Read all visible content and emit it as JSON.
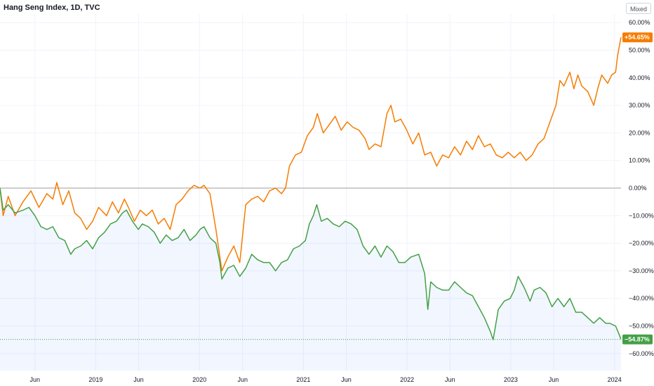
{
  "header": {
    "title": "Hang Seng Index, 1D, TVC",
    "mode_label": "Mixed"
  },
  "colors": {
    "comparison": "#f57c00",
    "main": "#43a047",
    "zero_line": "#9e9e9e",
    "grid": "#f0f3fa",
    "area": "#2962ff"
  },
  "chart_data": {
    "type": "line",
    "title": "Hang Seng Index, 1D, TVC",
    "xlabel": "",
    "ylabel": "",
    "ylim": [
      -62,
      62
    ],
    "y_ticks": [
      60,
      50,
      40,
      30,
      20,
      10,
      0,
      -10,
      -20,
      -30,
      -40,
      -50,
      -60
    ],
    "y_tick_labels": [
      "60.00%",
      "50.00%",
      "40.00%",
      "30.00%",
      "20.00%",
      "10.00%",
      "0.00%",
      "−10.00%",
      "−20.00%",
      "−30.00%",
      "−40.00%",
      "−50.00%",
      "−60.00%"
    ],
    "x_ticks": [
      "2018-06-01",
      "2019-01-01",
      "2019-06-01",
      "2020-01-01",
      "2020-06-01",
      "2021-01-01",
      "2021-06-01",
      "2022-01-01",
      "2022-06-01",
      "2023-01-01",
      "2023-06-01",
      "2024-01-01"
    ],
    "x_tick_labels": [
      "Jun",
      "2019",
      "Jun",
      "2020",
      "Jun",
      "2021",
      "Jun",
      "2022",
      "Jun",
      "2023",
      "Jun",
      "2024"
    ],
    "x_range": [
      "2018-01-29",
      "2024-01-24"
    ],
    "grid": true,
    "legend": "none",
    "series": [
      {
        "key": "comparison",
        "badge": "+54.65%",
        "points": [
          [
            "2018-01-29",
            0
          ],
          [
            "2018-02-09",
            -10
          ],
          [
            "2018-02-27",
            -3
          ],
          [
            "2018-03-23",
            -10
          ],
          [
            "2018-04-20",
            -5
          ],
          [
            "2018-05-18",
            -1
          ],
          [
            "2018-06-15",
            -7
          ],
          [
            "2018-07-13",
            -2
          ],
          [
            "2018-08-03",
            -4
          ],
          [
            "2018-08-17",
            2
          ],
          [
            "2018-09-07",
            -6
          ],
          [
            "2018-09-28",
            -1
          ],
          [
            "2018-10-19",
            -9
          ],
          [
            "2018-11-09",
            -11
          ],
          [
            "2018-11-30",
            -15
          ],
          [
            "2018-12-21",
            -12
          ],
          [
            "2019-01-11",
            -7
          ],
          [
            "2019-02-08",
            -10
          ],
          [
            "2019-03-01",
            -5
          ],
          [
            "2019-03-22",
            -9
          ],
          [
            "2019-04-12",
            -4
          ],
          [
            "2019-04-26",
            -7
          ],
          [
            "2019-05-17",
            -12
          ],
          [
            "2019-06-07",
            -8
          ],
          [
            "2019-06-28",
            -10
          ],
          [
            "2019-07-19",
            -8
          ],
          [
            "2019-08-09",
            -13
          ],
          [
            "2019-08-30",
            -11
          ],
          [
            "2019-09-20",
            -15
          ],
          [
            "2019-10-11",
            -6
          ],
          [
            "2019-11-01",
            -4
          ],
          [
            "2019-11-22",
            -1
          ],
          [
            "2019-12-13",
            1
          ],
          [
            "2020-01-03",
            0
          ],
          [
            "2020-01-17",
            1
          ],
          [
            "2020-02-07",
            -2
          ],
          [
            "2020-02-28",
            -15
          ],
          [
            "2020-03-13",
            -25
          ],
          [
            "2020-03-20",
            -30
          ],
          [
            "2020-04-10",
            -25
          ],
          [
            "2020-05-01",
            -21
          ],
          [
            "2020-05-22",
            -27
          ],
          [
            "2020-06-12",
            -6
          ],
          [
            "2020-07-03",
            -4
          ],
          [
            "2020-07-24",
            -3
          ],
          [
            "2020-08-14",
            -5
          ],
          [
            "2020-09-04",
            -1
          ],
          [
            "2020-09-25",
            0
          ],
          [
            "2020-10-16",
            -2
          ],
          [
            "2020-10-30",
            0
          ],
          [
            "2020-11-13",
            8
          ],
          [
            "2020-12-04",
            12
          ],
          [
            "2020-12-25",
            13
          ],
          [
            "2021-01-15",
            19
          ],
          [
            "2021-02-05",
            22
          ],
          [
            "2021-02-19",
            27
          ],
          [
            "2021-03-12",
            20
          ],
          [
            "2021-04-02",
            23
          ],
          [
            "2021-04-23",
            26
          ],
          [
            "2021-05-14",
            21
          ],
          [
            "2021-06-04",
            24
          ],
          [
            "2021-06-25",
            22
          ],
          [
            "2021-07-16",
            21
          ],
          [
            "2021-08-06",
            18
          ],
          [
            "2021-08-20",
            14
          ],
          [
            "2021-09-10",
            16
          ],
          [
            "2021-10-01",
            15
          ],
          [
            "2021-10-22",
            27
          ],
          [
            "2021-11-05",
            30
          ],
          [
            "2021-11-19",
            24
          ],
          [
            "2021-12-10",
            25
          ],
          [
            "2021-12-31",
            21
          ],
          [
            "2022-01-21",
            16
          ],
          [
            "2022-02-11",
            20
          ],
          [
            "2022-03-04",
            12
          ],
          [
            "2022-03-25",
            13
          ],
          [
            "2022-04-15",
            8
          ],
          [
            "2022-05-06",
            12
          ],
          [
            "2022-05-27",
            11
          ],
          [
            "2022-06-17",
            15
          ],
          [
            "2022-07-08",
            12
          ],
          [
            "2022-07-29",
            17
          ],
          [
            "2022-08-19",
            14
          ],
          [
            "2022-09-09",
            19
          ],
          [
            "2022-09-30",
            15
          ],
          [
            "2022-10-21",
            16
          ],
          [
            "2022-11-11",
            12
          ],
          [
            "2022-12-02",
            11
          ],
          [
            "2022-12-23",
            13
          ],
          [
            "2023-01-13",
            11
          ],
          [
            "2023-02-03",
            13
          ],
          [
            "2023-02-24",
            10
          ],
          [
            "2023-03-17",
            12
          ],
          [
            "2023-04-07",
            16
          ],
          [
            "2023-04-28",
            18
          ],
          [
            "2023-05-19",
            24
          ],
          [
            "2023-06-09",
            30
          ],
          [
            "2023-06-23",
            39
          ],
          [
            "2023-07-07",
            37
          ],
          [
            "2023-07-28",
            42
          ],
          [
            "2023-08-11",
            36
          ],
          [
            "2023-08-25",
            41
          ],
          [
            "2023-09-08",
            37
          ],
          [
            "2023-09-29",
            35
          ],
          [
            "2023-10-20",
            30
          ],
          [
            "2023-11-03",
            36
          ],
          [
            "2023-11-17",
            41
          ],
          [
            "2023-12-08",
            38
          ],
          [
            "2023-12-22",
            41
          ],
          [
            "2024-01-05",
            42
          ],
          [
            "2024-01-12",
            48
          ],
          [
            "2024-01-19",
            52
          ],
          [
            "2024-01-24",
            54.65
          ]
        ]
      },
      {
        "key": "main",
        "badge": "−54.87%",
        "points": [
          [
            "2018-01-29",
            0
          ],
          [
            "2018-02-09",
            -8
          ],
          [
            "2018-02-27",
            -6
          ],
          [
            "2018-03-23",
            -9
          ],
          [
            "2018-04-20",
            -8
          ],
          [
            "2018-05-11",
            -7
          ],
          [
            "2018-06-01",
            -10
          ],
          [
            "2018-06-22",
            -14
          ],
          [
            "2018-07-13",
            -15
          ],
          [
            "2018-08-03",
            -14
          ],
          [
            "2018-08-24",
            -18
          ],
          [
            "2018-09-14",
            -19
          ],
          [
            "2018-10-05",
            -24
          ],
          [
            "2018-10-19",
            -22
          ],
          [
            "2018-11-09",
            -21
          ],
          [
            "2018-11-30",
            -19
          ],
          [
            "2018-12-21",
            -22
          ],
          [
            "2019-01-11",
            -18
          ],
          [
            "2019-02-01",
            -16
          ],
          [
            "2019-02-22",
            -13
          ],
          [
            "2019-03-15",
            -12
          ],
          [
            "2019-04-05",
            -9
          ],
          [
            "2019-04-19",
            -8
          ],
          [
            "2019-05-10",
            -12
          ],
          [
            "2019-05-31",
            -15
          ],
          [
            "2019-06-14",
            -13
          ],
          [
            "2019-07-05",
            -14
          ],
          [
            "2019-07-26",
            -16
          ],
          [
            "2019-08-16",
            -20
          ],
          [
            "2019-09-06",
            -17
          ],
          [
            "2019-09-27",
            -19
          ],
          [
            "2019-10-18",
            -18
          ],
          [
            "2019-11-08",
            -15
          ],
          [
            "2019-11-29",
            -19
          ],
          [
            "2019-12-20",
            -17
          ],
          [
            "2020-01-03",
            -15
          ],
          [
            "2020-01-17",
            -14
          ],
          [
            "2020-02-07",
            -18
          ],
          [
            "2020-02-28",
            -20
          ],
          [
            "2020-03-13",
            -27
          ],
          [
            "2020-03-20",
            -33
          ],
          [
            "2020-04-10",
            -29
          ],
          [
            "2020-05-01",
            -28
          ],
          [
            "2020-05-22",
            -32
          ],
          [
            "2020-06-12",
            -29
          ],
          [
            "2020-07-03",
            -24
          ],
          [
            "2020-07-24",
            -26
          ],
          [
            "2020-08-14",
            -27
          ],
          [
            "2020-09-04",
            -27
          ],
          [
            "2020-09-25",
            -30
          ],
          [
            "2020-10-16",
            -27
          ],
          [
            "2020-11-06",
            -26
          ],
          [
            "2020-11-27",
            -22
          ],
          [
            "2020-12-18",
            -21
          ],
          [
            "2021-01-08",
            -19
          ],
          [
            "2021-01-22",
            -13
          ],
          [
            "2021-02-05",
            -10
          ],
          [
            "2021-02-17",
            -6
          ],
          [
            "2021-03-05",
            -12
          ],
          [
            "2021-03-26",
            -11
          ],
          [
            "2021-04-16",
            -13
          ],
          [
            "2021-05-07",
            -14
          ],
          [
            "2021-05-28",
            -12
          ],
          [
            "2021-06-18",
            -13
          ],
          [
            "2021-07-09",
            -15
          ],
          [
            "2021-07-30",
            -21
          ],
          [
            "2021-08-20",
            -24
          ],
          [
            "2021-09-10",
            -21
          ],
          [
            "2021-10-01",
            -25
          ],
          [
            "2021-10-22",
            -21
          ],
          [
            "2021-11-12",
            -23
          ],
          [
            "2021-12-03",
            -27
          ],
          [
            "2021-12-24",
            -27
          ],
          [
            "2022-01-14",
            -25
          ],
          [
            "2022-02-11",
            -24
          ],
          [
            "2022-03-04",
            -31
          ],
          [
            "2022-03-15",
            -44
          ],
          [
            "2022-03-25",
            -34
          ],
          [
            "2022-04-15",
            -36
          ],
          [
            "2022-05-06",
            -37
          ],
          [
            "2022-05-27",
            -37
          ],
          [
            "2022-06-17",
            -34
          ],
          [
            "2022-07-08",
            -36
          ],
          [
            "2022-07-29",
            -38
          ],
          [
            "2022-08-19",
            -39
          ],
          [
            "2022-09-09",
            -43
          ],
          [
            "2022-09-30",
            -47
          ],
          [
            "2022-10-21",
            -52
          ],
          [
            "2022-10-31",
            -55
          ],
          [
            "2022-11-18",
            -44
          ],
          [
            "2022-12-09",
            -41
          ],
          [
            "2022-12-30",
            -40
          ],
          [
            "2023-01-13",
            -37
          ],
          [
            "2023-01-27",
            -32
          ],
          [
            "2023-02-17",
            -36
          ],
          [
            "2023-03-10",
            -41
          ],
          [
            "2023-03-24",
            -37
          ],
          [
            "2023-04-14",
            -36
          ],
          [
            "2023-05-05",
            -38
          ],
          [
            "2023-05-26",
            -43
          ],
          [
            "2023-06-16",
            -40
          ],
          [
            "2023-07-07",
            -43
          ],
          [
            "2023-07-28",
            -40
          ],
          [
            "2023-08-18",
            -45
          ],
          [
            "2023-09-08",
            -45
          ],
          [
            "2023-09-29",
            -47
          ],
          [
            "2023-10-20",
            -49
          ],
          [
            "2023-11-10",
            -47
          ],
          [
            "2023-12-01",
            -49
          ],
          [
            "2023-12-15",
            -49
          ],
          [
            "2024-01-05",
            -50
          ],
          [
            "2024-01-17",
            -53
          ],
          [
            "2024-01-24",
            -54.87
          ]
        ]
      }
    ]
  }
}
